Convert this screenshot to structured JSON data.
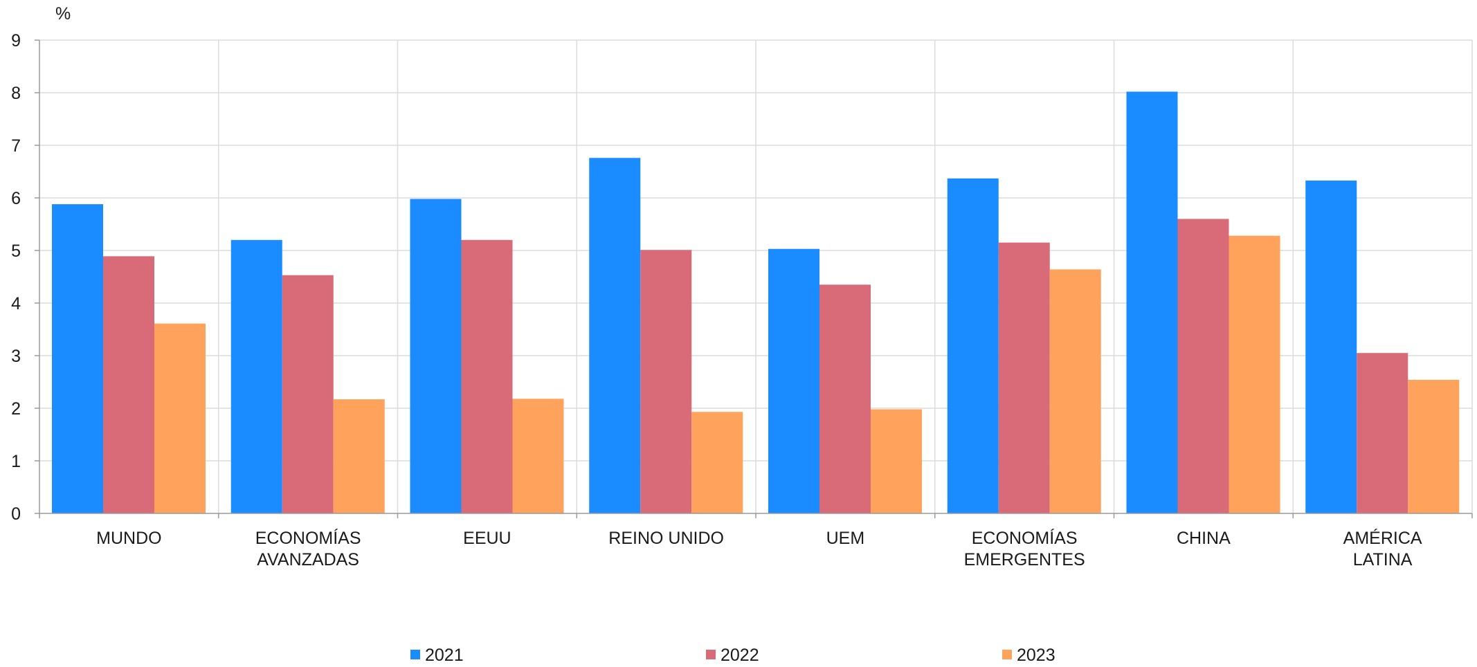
{
  "chart_data": {
    "type": "bar",
    "unit_label": "%",
    "categories": [
      [
        "MUNDO"
      ],
      [
        "ECONOMÍAS",
        "AVANZADAS"
      ],
      [
        "EEUU"
      ],
      [
        "REINO UNIDO"
      ],
      [
        "UEM"
      ],
      [
        "ECONOMÍAS",
        "EMERGENTES"
      ],
      [
        "CHINA"
      ],
      [
        "AMÉRICA",
        "LATINA"
      ]
    ],
    "series": [
      {
        "name": "2021",
        "color": "#1a8cff",
        "values": [
          5.88,
          5.2,
          5.98,
          6.76,
          5.03,
          6.37,
          8.02,
          6.33
        ]
      },
      {
        "name": "2022",
        "color": "#d96a77",
        "values": [
          4.89,
          4.53,
          5.2,
          5.01,
          4.35,
          5.15,
          5.6,
          3.05
        ]
      },
      {
        "name": "2023",
        "color": "#ffa35c",
        "values": [
          3.61,
          2.17,
          2.18,
          1.93,
          1.98,
          4.64,
          5.28,
          2.54
        ]
      }
    ],
    "ylim": [
      0,
      9
    ],
    "yticks": [
      "0",
      "1",
      "2",
      "3",
      "4",
      "5",
      "6",
      "7",
      "8",
      "9"
    ],
    "grid": true,
    "legend_position": "bottom"
  }
}
